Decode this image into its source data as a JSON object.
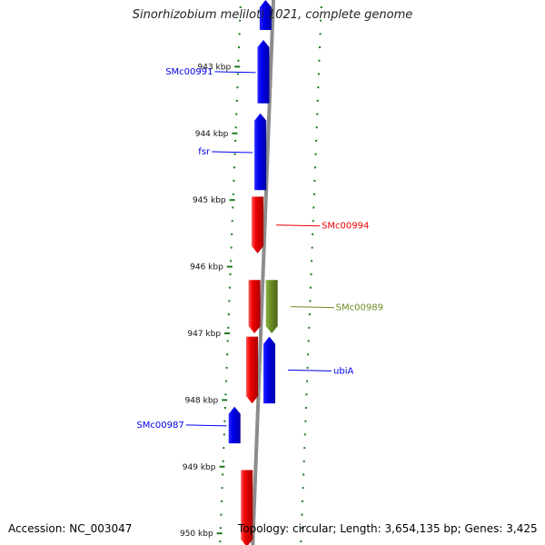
{
  "title": "Sinorhizobium meliloti 1021, complete genome",
  "footer": {
    "accession": "Accession: NC_003047",
    "topology": "Topology: circular; Length: 3,654,135 bp; Genes: 3,425"
  },
  "colors": {
    "backbone": "#8c8c8c",
    "ticks": "#1a7a1a",
    "forward_gene": "#0000ee",
    "reverse_gene": "#ee0000",
    "other_gene": "#6b8e23"
  },
  "kbp_labels": [
    "943 kbp",
    "944 kbp",
    "945 kbp",
    "946 kbp",
    "947 kbp",
    "948 kbp",
    "949 kbp",
    "950 kbp"
  ],
  "genes": [
    {
      "id": "g_top",
      "label": "",
      "strand": "forward",
      "track": 1,
      "start_kbp": 942.0,
      "end_kbp": 942.45,
      "arrow": "up"
    },
    {
      "id": "g_smc00991",
      "label": "SMc00991",
      "strand": "forward",
      "track": 1,
      "start_kbp": 942.6,
      "end_kbp": 943.55,
      "arrow": "up"
    },
    {
      "id": "g_fsr",
      "label": "fsr",
      "strand": "forward",
      "track": 1,
      "start_kbp": 943.7,
      "end_kbp": 944.85,
      "arrow": "up"
    },
    {
      "id": "g_smc00994",
      "label": "SMc00994",
      "strand": "reverse",
      "track": 1,
      "start_kbp": 944.95,
      "end_kbp": 945.8,
      "arrow": "down"
    },
    {
      "id": "g_red3",
      "label": "",
      "strand": "reverse",
      "track": 1,
      "start_kbp": 946.2,
      "end_kbp": 947.0,
      "arrow": "down"
    },
    {
      "id": "g_smc00989",
      "label": "SMc00989",
      "strand": "other",
      "track": 2,
      "start_kbp": 946.2,
      "end_kbp": 947.0,
      "arrow": "down"
    },
    {
      "id": "g_red4",
      "label": "",
      "strand": "reverse",
      "track": 1,
      "start_kbp": 947.05,
      "end_kbp": 948.05,
      "arrow": "down"
    },
    {
      "id": "g_ubia",
      "label": "ubiA",
      "strand": "forward",
      "track": 2,
      "start_kbp": 947.05,
      "end_kbp": 948.05,
      "arrow": "up"
    },
    {
      "id": "g_smc00987",
      "label": "SMc00987",
      "strand": "forward",
      "track": 0,
      "start_kbp": 948.1,
      "end_kbp": 948.65,
      "arrow": "up"
    },
    {
      "id": "g_red5",
      "label": "",
      "strand": "reverse",
      "track": 1,
      "start_kbp": 949.05,
      "end_kbp": 950.2,
      "arrow": "down"
    }
  ]
}
